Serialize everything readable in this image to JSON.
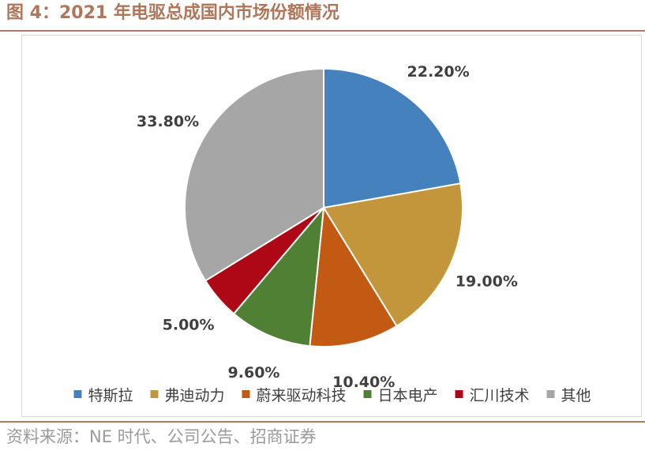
{
  "title": "图 4：2021 年电驱总成国内市场份额情况",
  "source": "资料来源：NE 时代、公司公告、招商证券",
  "chart_data": {
    "type": "pie",
    "title": "图 4：2021 年电驱总成国内市场份额情况",
    "categories": [
      "特斯拉",
      "弗迪动力",
      "蔚来驱动科技",
      "日本电产",
      "汇川技术",
      "其他"
    ],
    "values": [
      22.2,
      19.0,
      10.4,
      9.6,
      5.0,
      33.8
    ],
    "labels": [
      "22.20%",
      "19.00%",
      "10.40%",
      "9.60%",
      "5.00%",
      "33.80%"
    ],
    "colors": [
      "#4481bd",
      "#c4963c",
      "#c35a13",
      "#4f8033",
      "#ae0715",
      "#a6a6a6"
    ],
    "legend": "bottom",
    "start": "top-clockwise"
  }
}
